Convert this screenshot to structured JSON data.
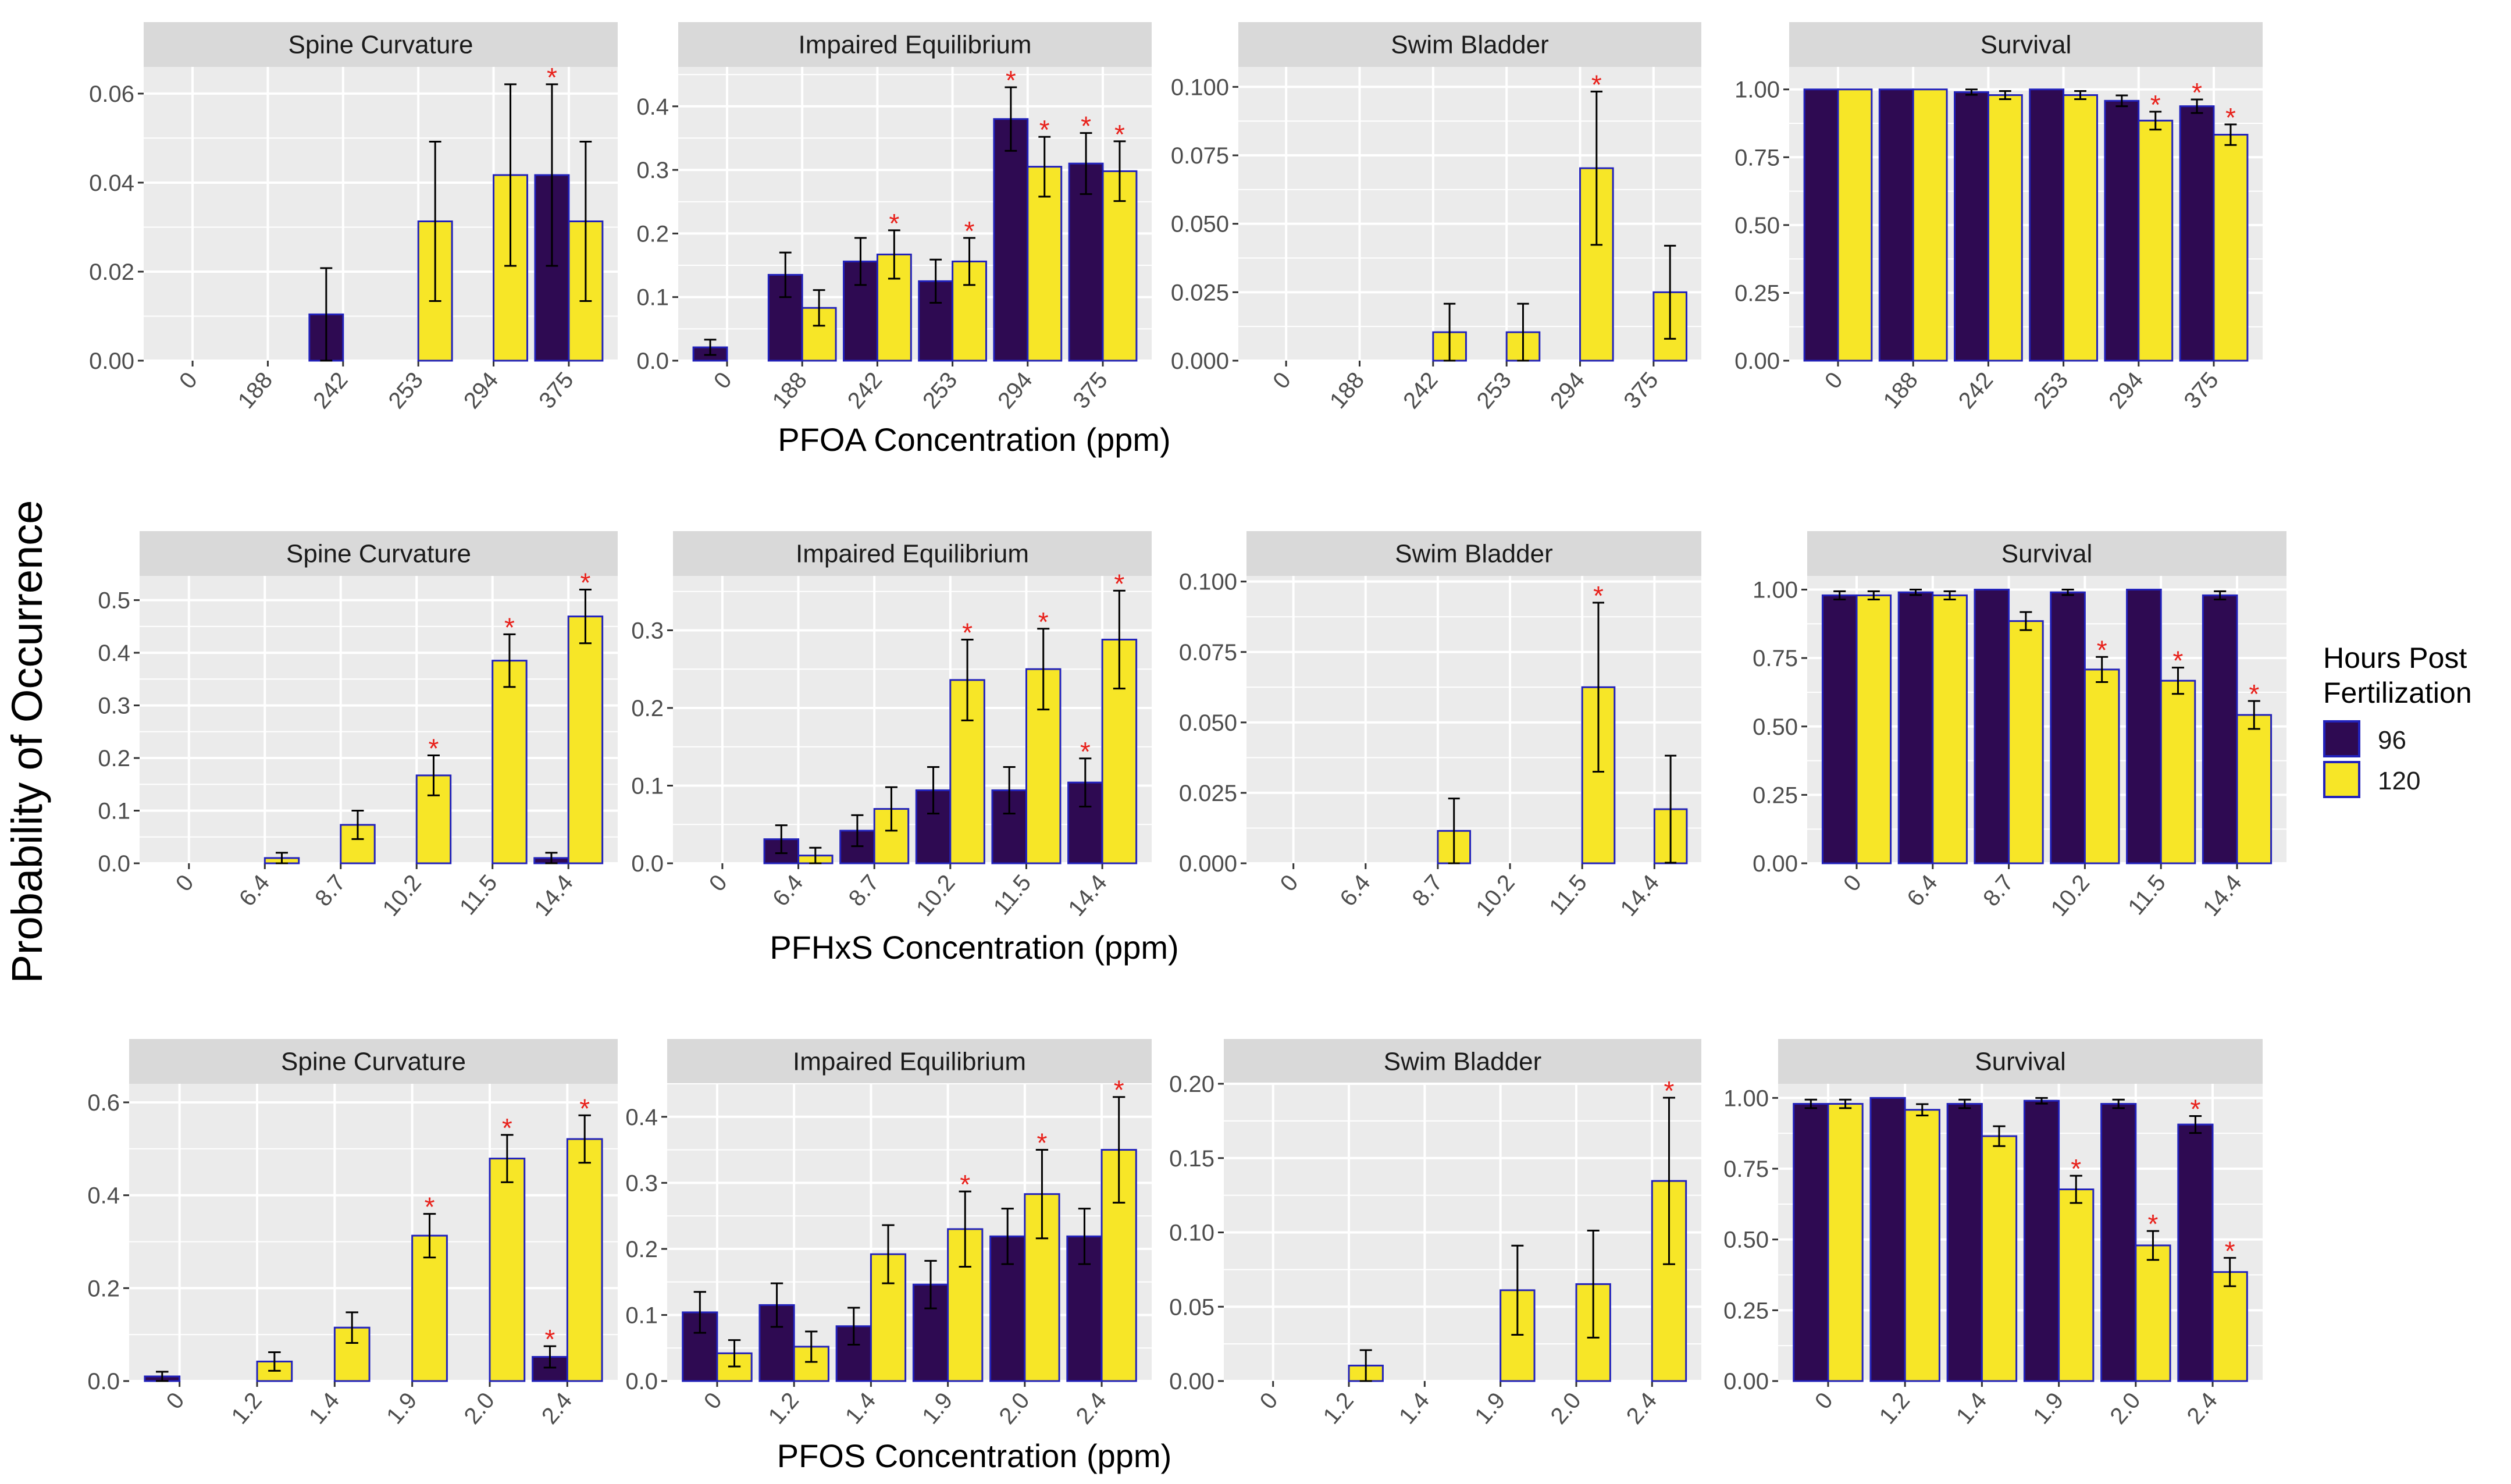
{
  "figure": {
    "ylabel": "Probability of Occurrence",
    "legend": {
      "title_line1": "Hours Post",
      "title_line2": "Fertilization",
      "entries": [
        "96",
        "120"
      ]
    },
    "colors": {
      "hpf96": "#2e0a52",
      "hpf120": "#f7e627",
      "bar_outline": "#2222bb",
      "panel_bg": "#ebebeb",
      "strip_bg": "#d9d9d9",
      "grid": "#ffffff",
      "star": "#e8211b",
      "errorbar": "#000000"
    }
  },
  "chart_data": [
    {
      "type": "bar",
      "row": 0,
      "col": 0,
      "title": "Spine Curvature",
      "xlabel": "PFOA Concentration (ppm)",
      "categories": [
        "0",
        "188",
        "242",
        "253",
        "294",
        "375"
      ],
      "ylim": [
        0,
        0.066
      ],
      "yticks": [
        0,
        0.02,
        0.04,
        0.06
      ],
      "yticklabels": [
        "0.00",
        "0.02",
        "0.04",
        "0.06"
      ],
      "series": [
        {
          "name": "96",
          "values": [
            0,
            0,
            0.0104,
            0,
            0,
            0.0417
          ],
          "errors": [
            0,
            0,
            0.0104,
            0,
            0,
            0.0204
          ]
        },
        {
          "name": "120",
          "values": [
            0,
            0,
            0,
            0.0313,
            0.0417,
            0.0313
          ],
          "errors": [
            0,
            0,
            0,
            0.0179,
            0.0204,
            0.0179
          ]
        }
      ],
      "significance": [
        [
          false,
          false,
          false,
          false,
          false,
          true
        ],
        [
          false,
          false,
          false,
          false,
          false,
          false
        ]
      ]
    },
    {
      "type": "bar",
      "row": 0,
      "col": 1,
      "title": "Impaired Equilibrium",
      "xlabel": "PFOA Concentration (ppm)",
      "categories": [
        "0",
        "188",
        "242",
        "253",
        "294",
        "375"
      ],
      "ylim": [
        0,
        0.462
      ],
      "yticks": [
        0,
        0.1,
        0.2,
        0.3,
        0.4
      ],
      "yticklabels": [
        "0.0",
        "0.1",
        "0.2",
        "0.3",
        "0.4"
      ],
      "series": [
        {
          "name": "96",
          "values": [
            0.021,
            0.135,
            0.156,
            0.125,
            0.38,
            0.31
          ],
          "errors": [
            0.012,
            0.035,
            0.037,
            0.034,
            0.05,
            0.048
          ]
        },
        {
          "name": "120",
          "values": [
            0,
            0.083,
            0.167,
            0.156,
            0.305,
            0.298
          ],
          "errors": [
            0,
            0.028,
            0.038,
            0.037,
            0.047,
            0.047
          ]
        }
      ],
      "significance": [
        [
          false,
          false,
          false,
          false,
          true,
          true
        ],
        [
          false,
          false,
          true,
          true,
          true,
          true
        ]
      ]
    },
    {
      "type": "bar",
      "row": 0,
      "col": 2,
      "title": "Swim Bladder",
      "xlabel": "PFOA Concentration (ppm)",
      "categories": [
        "0",
        "188",
        "242",
        "253",
        "294",
        "375"
      ],
      "ylim": [
        0,
        0.1073
      ],
      "yticks": [
        0,
        0.025,
        0.05,
        0.075,
        0.1
      ],
      "yticklabels": [
        "0.000",
        "0.025",
        "0.050",
        "0.075",
        "0.100"
      ],
      "series": [
        {
          "name": "96",
          "values": [
            0,
            0,
            0,
            0,
            0,
            0
          ],
          "errors": [
            0,
            0,
            0,
            0,
            0,
            0
          ]
        },
        {
          "name": "120",
          "values": [
            0,
            0,
            0.0104,
            0.0104,
            0.0703,
            0.025
          ],
          "errors": [
            0,
            0,
            0.0104,
            0.0104,
            0.028,
            0.017
          ]
        }
      ],
      "significance": [
        [
          false,
          false,
          false,
          false,
          false,
          false
        ],
        [
          false,
          false,
          false,
          false,
          true,
          false
        ]
      ]
    },
    {
      "type": "bar",
      "row": 0,
      "col": 3,
      "title": "Survival",
      "xlabel": "PFOA Concentration (ppm)",
      "categories": [
        "0",
        "188",
        "242",
        "253",
        "294",
        "375"
      ],
      "ylim": [
        0,
        1.083
      ],
      "yticks": [
        0,
        0.25,
        0.5,
        0.75,
        1.0
      ],
      "yticklabels": [
        "0.00",
        "0.25",
        "0.50",
        "0.75",
        "1.00"
      ],
      "series": [
        {
          "name": "96",
          "values": [
            1.0,
            1.0,
            0.99,
            1.0,
            0.958,
            0.938
          ],
          "errors": [
            0,
            0,
            0.01,
            0,
            0.02,
            0.025
          ]
        },
        {
          "name": "120",
          "values": [
            1.0,
            1.0,
            0.979,
            0.979,
            0.885,
            0.833
          ],
          "errors": [
            0,
            0,
            0.015,
            0.015,
            0.033,
            0.038
          ]
        }
      ],
      "significance": [
        [
          false,
          false,
          false,
          false,
          false,
          true
        ],
        [
          false,
          false,
          false,
          false,
          true,
          true
        ]
      ]
    },
    {
      "type": "bar",
      "row": 1,
      "col": 0,
      "title": "Spine Curvature",
      "xlabel": "PFHxS Concentration (ppm)",
      "categories": [
        "0",
        "6.4",
        "8.7",
        "10.2",
        "11.5",
        "14.4"
      ],
      "ylim": [
        0,
        0.546
      ],
      "yticks": [
        0,
        0.1,
        0.2,
        0.3,
        0.4,
        0.5
      ],
      "yticklabels": [
        "0.0",
        "0.1",
        "0.2",
        "0.3",
        "0.4",
        "0.5"
      ],
      "series": [
        {
          "name": "96",
          "values": [
            0,
            0,
            0,
            0,
            0,
            0.01
          ],
          "errors": [
            0,
            0,
            0,
            0,
            0,
            0.01
          ]
        },
        {
          "name": "120",
          "values": [
            0,
            0.01,
            0.073,
            0.167,
            0.385,
            0.469
          ],
          "errors": [
            0,
            0.01,
            0.027,
            0.038,
            0.05,
            0.051
          ]
        }
      ],
      "significance": [
        [
          false,
          false,
          false,
          false,
          false,
          false
        ],
        [
          false,
          false,
          false,
          true,
          true,
          true
        ]
      ]
    },
    {
      "type": "bar",
      "row": 1,
      "col": 1,
      "title": "Impaired Equilibrium",
      "xlabel": "PFHxS Concentration (ppm)",
      "categories": [
        "0",
        "6.4",
        "8.7",
        "10.2",
        "11.5",
        "14.4"
      ],
      "ylim": [
        0,
        0.37
      ],
      "yticks": [
        0,
        0.1,
        0.2,
        0.3
      ],
      "yticklabels": [
        "0.0",
        "0.1",
        "0.2",
        "0.3"
      ],
      "series": [
        {
          "name": "96",
          "values": [
            0,
            0.031,
            0.042,
            0.094,
            0.094,
            0.104
          ],
          "errors": [
            0,
            0.018,
            0.02,
            0.03,
            0.03,
            0.031
          ]
        },
        {
          "name": "120",
          "values": [
            0,
            0.01,
            0.07,
            0.236,
            0.25,
            0.288
          ],
          "errors": [
            0,
            0.01,
            0.028,
            0.052,
            0.052,
            0.063
          ]
        }
      ],
      "significance": [
        [
          false,
          false,
          false,
          false,
          false,
          true
        ],
        [
          false,
          false,
          false,
          true,
          true,
          true
        ]
      ]
    },
    {
      "type": "bar",
      "row": 1,
      "col": 2,
      "title": "Swim Bladder",
      "xlabel": "PFHxS Concentration (ppm)",
      "categories": [
        "0",
        "6.4",
        "8.7",
        "10.2",
        "11.5",
        "14.4"
      ],
      "ylim": [
        0,
        0.102
      ],
      "yticks": [
        0,
        0.025,
        0.05,
        0.075,
        0.1
      ],
      "yticklabels": [
        "0.000",
        "0.025",
        "0.050",
        "0.075",
        "0.100"
      ],
      "series": [
        {
          "name": "96",
          "values": [
            0,
            0,
            0,
            0,
            0,
            0
          ],
          "errors": [
            0,
            0,
            0,
            0,
            0,
            0
          ]
        },
        {
          "name": "120",
          "values": [
            0,
            0,
            0.0115,
            0,
            0.0625,
            0.0192
          ],
          "errors": [
            0,
            0,
            0.0115,
            0,
            0.03,
            0.019
          ]
        }
      ],
      "significance": [
        [
          false,
          false,
          false,
          false,
          false,
          false
        ],
        [
          false,
          false,
          false,
          false,
          true,
          false
        ]
      ]
    },
    {
      "type": "bar",
      "row": 1,
      "col": 3,
      "title": "Survival",
      "xlabel": "PFHxS Concentration (ppm)",
      "categories": [
        "0",
        "6.4",
        "8.7",
        "10.2",
        "11.5",
        "14.4"
      ],
      "ylim": [
        0,
        1.05
      ],
      "yticks": [
        0,
        0.25,
        0.5,
        0.75,
        1.0
      ],
      "yticklabels": [
        "0.00",
        "0.25",
        "0.50",
        "0.75",
        "1.00"
      ],
      "series": [
        {
          "name": "96",
          "values": [
            0.979,
            0.99,
            1.0,
            0.99,
            1.0,
            0.979
          ],
          "errors": [
            0.015,
            0.01,
            0,
            0.01,
            0,
            0.015
          ]
        },
        {
          "name": "120",
          "values": [
            0.979,
            0.979,
            0.885,
            0.708,
            0.667,
            0.542
          ],
          "errors": [
            0.015,
            0.015,
            0.033,
            0.046,
            0.048,
            0.051
          ]
        }
      ],
      "significance": [
        [
          false,
          false,
          false,
          false,
          false,
          false
        ],
        [
          false,
          false,
          false,
          true,
          true,
          true
        ]
      ]
    },
    {
      "type": "bar",
      "row": 2,
      "col": 0,
      "title": "Spine Curvature",
      "xlabel": "PFOS Concentration (ppm)",
      "categories": [
        "0",
        "1.2",
        "1.4",
        "1.9",
        "2.0",
        "2.4"
      ],
      "ylim": [
        0,
        0.64
      ],
      "yticks": [
        0,
        0.2,
        0.4,
        0.6
      ],
      "yticklabels": [
        "0.0",
        "0.2",
        "0.4",
        "0.6"
      ],
      "series": [
        {
          "name": "96",
          "values": [
            0.01,
            0,
            0,
            0,
            0,
            0.052
          ],
          "errors": [
            0.01,
            0,
            0,
            0,
            0,
            0.023
          ]
        },
        {
          "name": "120",
          "values": [
            0,
            0.042,
            0.115,
            0.313,
            0.479,
            0.521
          ],
          "errors": [
            0,
            0.02,
            0.033,
            0.047,
            0.051,
            0.051
          ]
        }
      ],
      "significance": [
        [
          false,
          false,
          false,
          false,
          false,
          true
        ],
        [
          false,
          false,
          false,
          true,
          true,
          true
        ]
      ]
    },
    {
      "type": "bar",
      "row": 2,
      "col": 1,
      "title": "Impaired Equilibrium",
      "xlabel": "PFOS Concentration (ppm)",
      "categories": [
        "0",
        "1.2",
        "1.4",
        "1.9",
        "2.0",
        "2.4"
      ],
      "ylim": [
        0,
        0.45
      ],
      "yticks": [
        0,
        0.1,
        0.2,
        0.3,
        0.4
      ],
      "yticklabels": [
        "0.0",
        "0.1",
        "0.2",
        "0.3",
        "0.4"
      ],
      "series": [
        {
          "name": "96",
          "values": [
            0.104,
            0.115,
            0.083,
            0.146,
            0.219,
            0.219
          ],
          "errors": [
            0.031,
            0.033,
            0.028,
            0.036,
            0.042,
            0.042
          ]
        },
        {
          "name": "120",
          "values": [
            0.042,
            0.052,
            0.192,
            0.23,
            0.283,
            0.35
          ],
          "errors": [
            0.02,
            0.023,
            0.044,
            0.057,
            0.067,
            0.08
          ]
        }
      ],
      "significance": [
        [
          false,
          false,
          false,
          false,
          false,
          false
        ],
        [
          false,
          false,
          false,
          true,
          true,
          true
        ]
      ]
    },
    {
      "type": "bar",
      "row": 2,
      "col": 2,
      "title": "Swim Bladder",
      "xlabel": "PFOS Concentration (ppm)",
      "categories": [
        "0",
        "1.2",
        "1.4",
        "1.9",
        "2.0",
        "2.4"
      ],
      "ylim": [
        0,
        0.2
      ],
      "yticks": [
        0,
        0.05,
        0.1,
        0.15,
        0.2
      ],
      "yticklabels": [
        "0.00",
        "0.05",
        "0.10",
        "0.15",
        "0.20"
      ],
      "series": [
        {
          "name": "96",
          "values": [
            0,
            0,
            0,
            0,
            0,
            0
          ],
          "errors": [
            0,
            0,
            0,
            0,
            0,
            0
          ]
        },
        {
          "name": "120",
          "values": [
            0,
            0.0104,
            0,
            0.0611,
            0.0652,
            0.1346
          ],
          "errors": [
            0,
            0.0104,
            0,
            0.03,
            0.036,
            0.056
          ]
        }
      ],
      "significance": [
        [
          false,
          false,
          false,
          false,
          false,
          false
        ],
        [
          false,
          false,
          false,
          false,
          false,
          true
        ]
      ]
    },
    {
      "type": "bar",
      "row": 2,
      "col": 3,
      "title": "Survival",
      "xlabel": "PFOS Concentration (ppm)",
      "categories": [
        "0",
        "1.2",
        "1.4",
        "1.9",
        "2.0",
        "2.4"
      ],
      "ylim": [
        0,
        1.05
      ],
      "yticks": [
        0,
        0.25,
        0.5,
        0.75,
        1.0
      ],
      "yticklabels": [
        "0.00",
        "0.25",
        "0.50",
        "0.75",
        "1.00"
      ],
      "series": [
        {
          "name": "96",
          "values": [
            0.979,
            1.0,
            0.979,
            0.99,
            0.979,
            0.906
          ],
          "errors": [
            0.015,
            0,
            0.015,
            0.01,
            0.015,
            0.03
          ]
        },
        {
          "name": "120",
          "values": [
            0.979,
            0.958,
            0.865,
            0.677,
            0.479,
            0.385
          ],
          "errors": [
            0.015,
            0.02,
            0.035,
            0.048,
            0.051,
            0.05
          ]
        }
      ],
      "significance": [
        [
          false,
          false,
          false,
          false,
          false,
          true
        ],
        [
          false,
          false,
          false,
          true,
          true,
          true
        ]
      ]
    }
  ]
}
